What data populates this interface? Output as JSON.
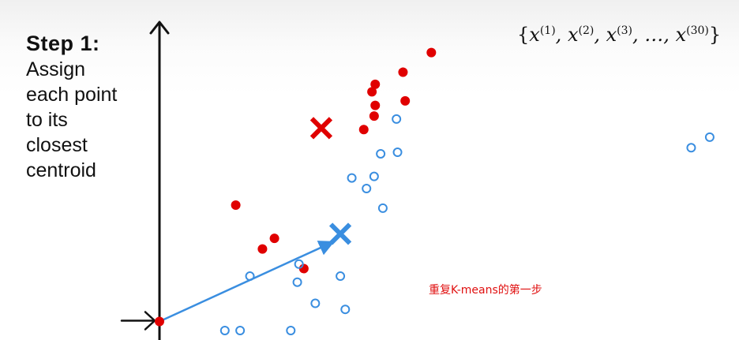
{
  "slide": {
    "step_title": "Step 1:",
    "step_description": "Assign\neach point\nto its\nclosest\ncentroid",
    "dataset_notation": {
      "symbol": "x",
      "indices": [
        "(1)",
        "(2)",
        "(3)",
        "(30)"
      ],
      "separator": ",",
      "ellipsis": "…"
    },
    "caption": "重复K-means的第一步"
  },
  "colors": {
    "red_cluster": "#e00000",
    "blue_cluster": "#3a8ee0",
    "axis": "#111111",
    "caption": "#e01010"
  },
  "chart_data": {
    "type": "scatter",
    "grid": false,
    "axes_visible": "y-axis arrow only",
    "xlim": [
      0,
      100
    ],
    "ylim": [
      0,
      100
    ],
    "series": [
      {
        "marker": "filled-circle",
        "color": "#e00000",
        "points": [
          [
            49.9,
            92
          ],
          [
            39.0,
            79
          ],
          [
            39.6,
            81.5
          ],
          [
            44.7,
            85.5
          ],
          [
            39.6,
            74.5
          ],
          [
            45.1,
            76
          ],
          [
            39.4,
            71
          ],
          [
            37.5,
            66.5
          ],
          [
            14.0,
            41.5
          ],
          [
            21.1,
            30.5
          ],
          [
            18.9,
            27
          ],
          [
            26.5,
            20.5
          ],
          [
            0,
            3
          ]
        ]
      },
      {
        "marker": "open-circle",
        "color": "#3a8ee0",
        "points": [
          [
            43.5,
            70
          ],
          [
            40.6,
            58.5
          ],
          [
            43.7,
            59
          ],
          [
            38.0,
            47
          ],
          [
            35.3,
            50.5
          ],
          [
            39.4,
            51
          ],
          [
            41.0,
            40.5
          ],
          [
            25.6,
            22
          ],
          [
            34.1,
            7
          ],
          [
            16.6,
            18
          ],
          [
            25.3,
            16
          ],
          [
            33.2,
            18
          ],
          [
            28.6,
            9
          ],
          [
            12.0,
            0
          ],
          [
            14.8,
            0
          ],
          [
            24.1,
            0
          ],
          [
            97.6,
            60.5
          ],
          [
            101.0,
            64
          ]
        ]
      }
    ],
    "centroids": [
      {
        "marker": "x",
        "color": "#e00000",
        "x": 29.7,
        "y": 67
      },
      {
        "marker": "x",
        "color": "#3a8ee0",
        "x": 33.2,
        "y": 32
      }
    ],
    "annotation": {
      "type": "arrow",
      "from": [
        0,
        3
      ],
      "to": [
        31.5,
        29
      ],
      "color": "#3a8ee0"
    }
  }
}
